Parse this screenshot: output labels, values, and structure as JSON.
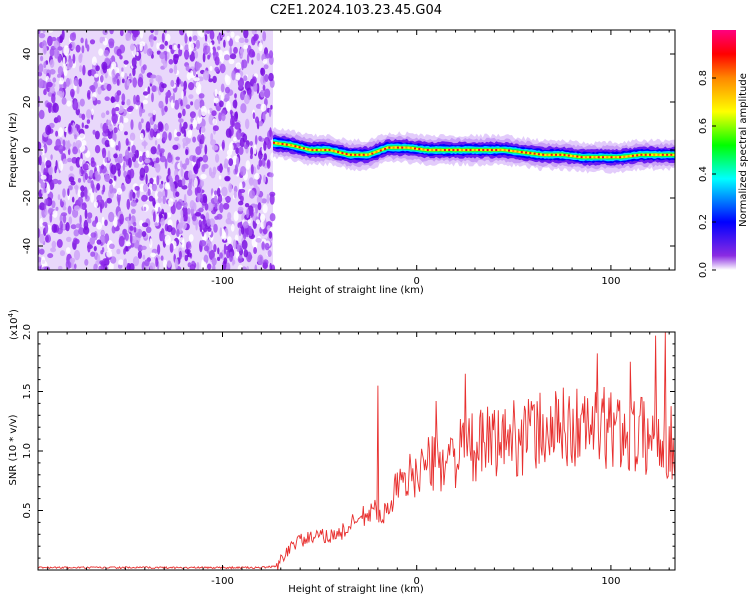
{
  "title": "C2E1.2024.103.23.45.G04",
  "chart_data": [
    {
      "type": "heatmap",
      "xlabel": "Height of straight line (km)",
      "ylabel": "Frequency (Hz)",
      "xlim": [
        -195,
        133
      ],
      "ylim": [
        -50,
        50
      ],
      "xticks": [
        -100,
        0,
        100
      ],
      "yticks": [
        -40,
        -20,
        0,
        20,
        40
      ],
      "colorbar": {
        "label": "Normalized spectral amplitude",
        "ticks": [
          "0.0",
          "0.2",
          "0.4",
          "0.6",
          "0.8"
        ],
        "range": [
          0,
          1
        ],
        "colormap": [
          "#ffffff",
          "#8a2be2",
          "#0000ff",
          "#00ffff",
          "#00ff00",
          "#ffff00",
          "#ff8800",
          "#ff0000",
          "#ff007f"
        ]
      },
      "noise_region": {
        "x_start": -195,
        "x_end": -74
      },
      "signal_ridge": {
        "x": [
          -74,
          -65,
          -55,
          -45,
          -35,
          -25,
          -15,
          -5,
          5,
          15,
          25,
          35,
          45,
          55,
          65,
          75,
          85,
          95,
          105,
          115,
          125,
          133
        ],
        "y": [
          3,
          2,
          0,
          0,
          -2,
          -2,
          1,
          1,
          0,
          0,
          0,
          0,
          0,
          -1,
          -2,
          -2,
          -3,
          -3,
          -3,
          -2,
          -2,
          -2
        ]
      },
      "grid": false
    },
    {
      "type": "line",
      "xlabel": "Height of straight line (km)",
      "ylabel": "SNR (10 * v/v)",
      "yscale_note": "(x10",
      "yscale_exp": "4",
      "yscale_close": ")",
      "xlim": [
        -195,
        133
      ],
      "ylim": [
        0,
        2.0
      ],
      "xticks": [
        -100,
        0,
        100
      ],
      "yticks": [
        "0.5",
        "1.0",
        "1.5",
        "2.0"
      ],
      "series": [
        {
          "color": "#e8302f",
          "x": [
            -195,
            -180,
            -160,
            -140,
            -120,
            -100,
            -90,
            -80,
            -72,
            -65,
            -60,
            -50,
            -40,
            -30,
            -22,
            -18,
            -15,
            -10,
            -5,
            0,
            10,
            20,
            30,
            40,
            50,
            60,
            70,
            80,
            90,
            100,
            110,
            120,
            125,
            130,
            133
          ],
          "y": [
            0.02,
            0.02,
            0.02,
            0.02,
            0.02,
            0.02,
            0.02,
            0.02,
            0.03,
            0.2,
            0.25,
            0.28,
            0.3,
            0.42,
            0.5,
            0.38,
            0.58,
            0.68,
            0.75,
            0.85,
            0.9,
            0.97,
            1.02,
            1.08,
            1.12,
            1.15,
            1.18,
            1.2,
            1.2,
            1.18,
            1.15,
            1.12,
            1.1,
            1.08,
            1.05
          ],
          "spikes": [
            {
              "x": -20,
              "y": 1.55
            },
            {
              "x": 10,
              "y": 1.42
            },
            {
              "x": 25,
              "y": 1.65
            },
            {
              "x": 93,
              "y": 1.82
            },
            {
              "x": 110,
              "y": 1.75
            },
            {
              "x": 123,
              "y": 1.97
            },
            {
              "x": 128,
              "y": 2.0
            }
          ]
        }
      ],
      "grid": false
    }
  ]
}
